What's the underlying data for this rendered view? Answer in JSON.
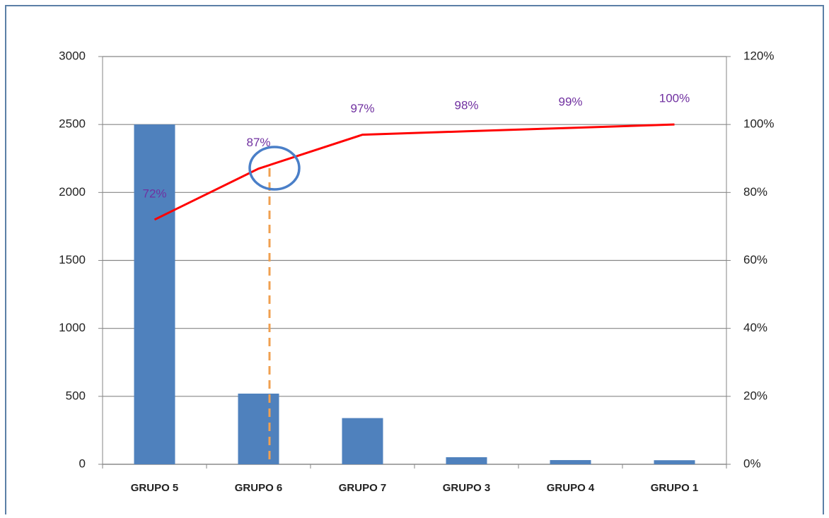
{
  "chart_data": {
    "type": "pareto",
    "categories": [
      "GRUPO 5",
      "GRUPO 6",
      "GRUPO 7",
      "GRUPO 3",
      "GRUPO 4",
      "GRUPO 1"
    ],
    "series": [
      {
        "type": "bar",
        "color": "#4f81bd",
        "values": [
          2500,
          520,
          340,
          52,
          31,
          30
        ]
      },
      {
        "type": "line",
        "axis": "y2",
        "color": "#ff0000",
        "values": [
          72,
          87,
          97,
          98,
          99,
          100
        ],
        "value_labels": [
          "72%",
          "87%",
          "97%",
          "98%",
          "99%",
          "100%"
        ],
        "label_color": "#7030a0"
      }
    ],
    "ylim": [
      0,
      3000
    ],
    "yticks": [
      0,
      500,
      1000,
      1500,
      2000,
      2500,
      3000
    ],
    "y2lim": [
      0,
      120
    ],
    "y2ticks": [
      {
        "value": 0,
        "label": "0%"
      },
      {
        "value": 20,
        "label": "20%"
      },
      {
        "value": 40,
        "label": "40%"
      },
      {
        "value": 60,
        "label": "60%"
      },
      {
        "value": 80,
        "label": "80%"
      },
      {
        "value": 100,
        "label": "100%"
      },
      {
        "value": 120,
        "label": "120%"
      }
    ],
    "grid": true
  }
}
